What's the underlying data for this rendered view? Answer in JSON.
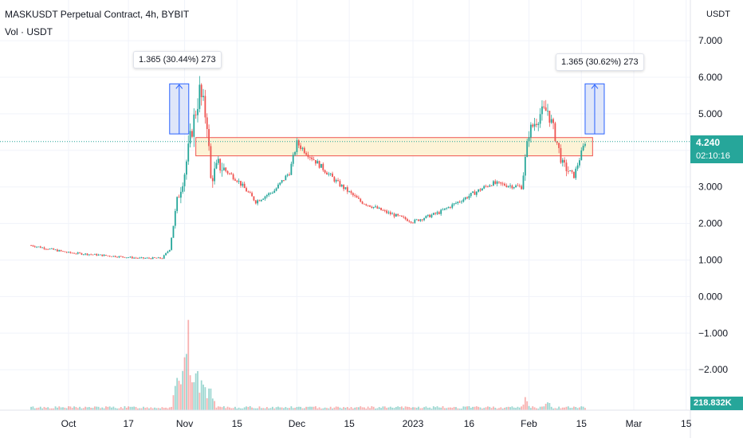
{
  "header": {
    "title": "MASKUSDT Perpetual Contract, 4h, BYBIT",
    "volume_label": "Vol · USDT"
  },
  "price_axis": {
    "currency": "USDT",
    "ticks": [
      "7.000",
      "6.000",
      "5.000",
      "4.000",
      "3.000",
      "2.000",
      "1.000",
      "0.000",
      "−1.000",
      "−2.000"
    ],
    "current_price": "4.240",
    "countdown": "02:10:16",
    "volume_value": "218.832K"
  },
  "time_axis": {
    "ticks": [
      "Oct",
      "17",
      "Nov",
      "15",
      "Dec",
      "15",
      "2023",
      "16",
      "Feb",
      "15",
      "Mar",
      "15"
    ]
  },
  "annotations": {
    "left_measure": "1.365 (30.44%) 273",
    "right_measure": "1.365 (30.62%) 273"
  },
  "colors": {
    "up": "#26a69a",
    "down": "#ef5350",
    "measure_fill": "#d7e0f7",
    "measure_stroke": "#2962ff",
    "zone_fill": "#fdf1cf",
    "zone_stroke": "#ef5350"
  },
  "chart_data": {
    "type": "candlestick",
    "symbol": "MASKUSDT",
    "interval": "4h",
    "exchange": "BYBIT",
    "ylim": [
      -2.5,
      7.4
    ],
    "price_path": [
      {
        "date": "2022-09-21",
        "price": 1.4
      },
      {
        "date": "2022-10-01",
        "price": 1.2
      },
      {
        "date": "2022-10-10",
        "price": 1.13
      },
      {
        "date": "2022-10-20",
        "price": 1.05
      },
      {
        "date": "2022-10-26",
        "price": 1.05
      },
      {
        "date": "2022-10-28",
        "price": 1.3
      },
      {
        "date": "2022-10-30",
        "price": 2.6
      },
      {
        "date": "2022-11-01",
        "price": 3.4
      },
      {
        "date": "2022-11-03",
        "price": 4.6
      },
      {
        "date": "2022-11-05",
        "price": 5.6
      },
      {
        "date": "2022-11-07",
        "price": 4.8
      },
      {
        "date": "2022-11-08",
        "price": 3.2
      },
      {
        "date": "2022-11-10",
        "price": 3.6
      },
      {
        "date": "2022-11-15",
        "price": 3.2
      },
      {
        "date": "2022-11-20",
        "price": 2.6
      },
      {
        "date": "2022-11-25",
        "price": 2.9
      },
      {
        "date": "2022-11-29",
        "price": 3.4
      },
      {
        "date": "2022-12-01",
        "price": 4.2
      },
      {
        "date": "2022-12-05",
        "price": 3.8
      },
      {
        "date": "2022-12-12",
        "price": 3.1
      },
      {
        "date": "2022-12-18",
        "price": 2.6
      },
      {
        "date": "2022-12-25",
        "price": 2.3
      },
      {
        "date": "2023-01-01",
        "price": 2.05
      },
      {
        "date": "2023-01-08",
        "price": 2.3
      },
      {
        "date": "2023-01-15",
        "price": 2.7
      },
      {
        "date": "2023-01-22",
        "price": 3.1
      },
      {
        "date": "2023-01-30",
        "price": 3.0
      },
      {
        "date": "2023-02-01",
        "price": 4.5
      },
      {
        "date": "2023-02-04",
        "price": 5.0
      },
      {
        "date": "2023-02-06",
        "price": 5.1
      },
      {
        "date": "2023-02-08",
        "price": 4.4
      },
      {
        "date": "2023-02-10",
        "price": 3.6
      },
      {
        "date": "2023-02-13",
        "price": 3.3
      },
      {
        "date": "2023-02-16",
        "price": 4.24
      }
    ],
    "volume_spikes": [
      {
        "date": "2022-10-30",
        "relative": 0.55
      },
      {
        "date": "2022-11-01",
        "relative": 0.85
      },
      {
        "date": "2022-11-02",
        "relative": 1.0
      },
      {
        "date": "2022-11-04",
        "relative": 0.7
      },
      {
        "date": "2022-11-06",
        "relative": 0.45
      },
      {
        "date": "2022-11-08",
        "relative": 0.35
      },
      {
        "date": "2023-01-31",
        "relative": 0.15
      },
      {
        "date": "2023-02-06",
        "relative": 0.12
      }
    ],
    "resistance_zone": {
      "low": 3.85,
      "high": 4.35
    },
    "measures": [
      {
        "label": "1.365 (30.44%) 273",
        "from": 4.45,
        "to": 5.82
      },
      {
        "label": "1.365 (30.62%) 273",
        "from": 4.45,
        "to": 5.82
      }
    ],
    "last_price": 4.24
  }
}
